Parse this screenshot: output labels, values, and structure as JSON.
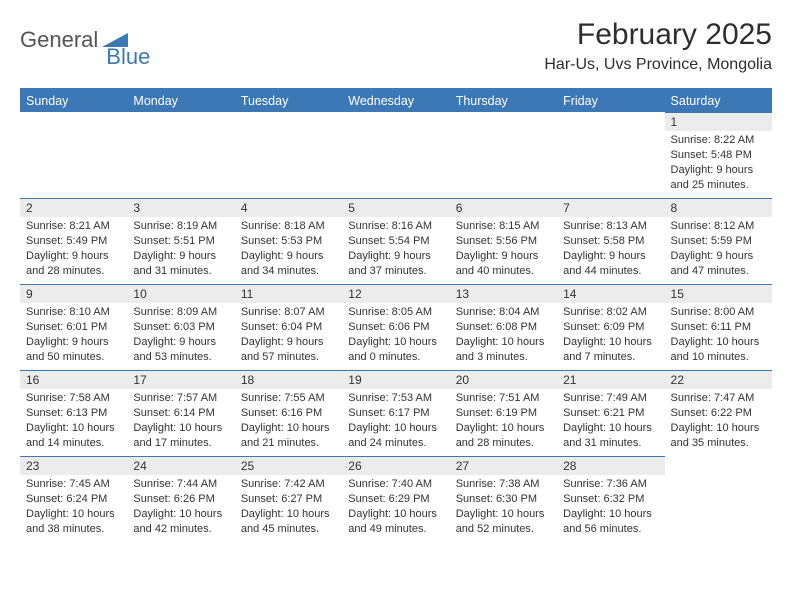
{
  "logo": {
    "part1": "General",
    "part2": "Blue"
  },
  "title": {
    "month": "February 2025",
    "location": "Har-Us, Uvs Province, Mongolia"
  },
  "colors": {
    "accent": "#3b78b5",
    "header_bg": "#3b78b5",
    "header_text": "#ffffff",
    "daynum_bg": "#ececec",
    "body_text": "#333333",
    "background": "#ffffff"
  },
  "calendar": {
    "type": "table",
    "day_headers": [
      "Sunday",
      "Monday",
      "Tuesday",
      "Wednesday",
      "Thursday",
      "Friday",
      "Saturday"
    ],
    "first_weekday_index": 6,
    "days": [
      {
        "n": 1,
        "sunrise": "8:22 AM",
        "sunset": "5:48 PM",
        "daylight": "9 hours and 25 minutes."
      },
      {
        "n": 2,
        "sunrise": "8:21 AM",
        "sunset": "5:49 PM",
        "daylight": "9 hours and 28 minutes."
      },
      {
        "n": 3,
        "sunrise": "8:19 AM",
        "sunset": "5:51 PM",
        "daylight": "9 hours and 31 minutes."
      },
      {
        "n": 4,
        "sunrise": "8:18 AM",
        "sunset": "5:53 PM",
        "daylight": "9 hours and 34 minutes."
      },
      {
        "n": 5,
        "sunrise": "8:16 AM",
        "sunset": "5:54 PM",
        "daylight": "9 hours and 37 minutes."
      },
      {
        "n": 6,
        "sunrise": "8:15 AM",
        "sunset": "5:56 PM",
        "daylight": "9 hours and 40 minutes."
      },
      {
        "n": 7,
        "sunrise": "8:13 AM",
        "sunset": "5:58 PM",
        "daylight": "9 hours and 44 minutes."
      },
      {
        "n": 8,
        "sunrise": "8:12 AM",
        "sunset": "5:59 PM",
        "daylight": "9 hours and 47 minutes."
      },
      {
        "n": 9,
        "sunrise": "8:10 AM",
        "sunset": "6:01 PM",
        "daylight": "9 hours and 50 minutes."
      },
      {
        "n": 10,
        "sunrise": "8:09 AM",
        "sunset": "6:03 PM",
        "daylight": "9 hours and 53 minutes."
      },
      {
        "n": 11,
        "sunrise": "8:07 AM",
        "sunset": "6:04 PM",
        "daylight": "9 hours and 57 minutes."
      },
      {
        "n": 12,
        "sunrise": "8:05 AM",
        "sunset": "6:06 PM",
        "daylight": "10 hours and 0 minutes."
      },
      {
        "n": 13,
        "sunrise": "8:04 AM",
        "sunset": "6:08 PM",
        "daylight": "10 hours and 3 minutes."
      },
      {
        "n": 14,
        "sunrise": "8:02 AM",
        "sunset": "6:09 PM",
        "daylight": "10 hours and 7 minutes."
      },
      {
        "n": 15,
        "sunrise": "8:00 AM",
        "sunset": "6:11 PM",
        "daylight": "10 hours and 10 minutes."
      },
      {
        "n": 16,
        "sunrise": "7:58 AM",
        "sunset": "6:13 PM",
        "daylight": "10 hours and 14 minutes."
      },
      {
        "n": 17,
        "sunrise": "7:57 AM",
        "sunset": "6:14 PM",
        "daylight": "10 hours and 17 minutes."
      },
      {
        "n": 18,
        "sunrise": "7:55 AM",
        "sunset": "6:16 PM",
        "daylight": "10 hours and 21 minutes."
      },
      {
        "n": 19,
        "sunrise": "7:53 AM",
        "sunset": "6:17 PM",
        "daylight": "10 hours and 24 minutes."
      },
      {
        "n": 20,
        "sunrise": "7:51 AM",
        "sunset": "6:19 PM",
        "daylight": "10 hours and 28 minutes."
      },
      {
        "n": 21,
        "sunrise": "7:49 AM",
        "sunset": "6:21 PM",
        "daylight": "10 hours and 31 minutes."
      },
      {
        "n": 22,
        "sunrise": "7:47 AM",
        "sunset": "6:22 PM",
        "daylight": "10 hours and 35 minutes."
      },
      {
        "n": 23,
        "sunrise": "7:45 AM",
        "sunset": "6:24 PM",
        "daylight": "10 hours and 38 minutes."
      },
      {
        "n": 24,
        "sunrise": "7:44 AM",
        "sunset": "6:26 PM",
        "daylight": "10 hours and 42 minutes."
      },
      {
        "n": 25,
        "sunrise": "7:42 AM",
        "sunset": "6:27 PM",
        "daylight": "10 hours and 45 minutes."
      },
      {
        "n": 26,
        "sunrise": "7:40 AM",
        "sunset": "6:29 PM",
        "daylight": "10 hours and 49 minutes."
      },
      {
        "n": 27,
        "sunrise": "7:38 AM",
        "sunset": "6:30 PM",
        "daylight": "10 hours and 52 minutes."
      },
      {
        "n": 28,
        "sunrise": "7:36 AM",
        "sunset": "6:32 PM",
        "daylight": "10 hours and 56 minutes."
      }
    ],
    "labels": {
      "sunrise": "Sunrise:",
      "sunset": "Sunset:",
      "daylight": "Daylight:"
    }
  }
}
